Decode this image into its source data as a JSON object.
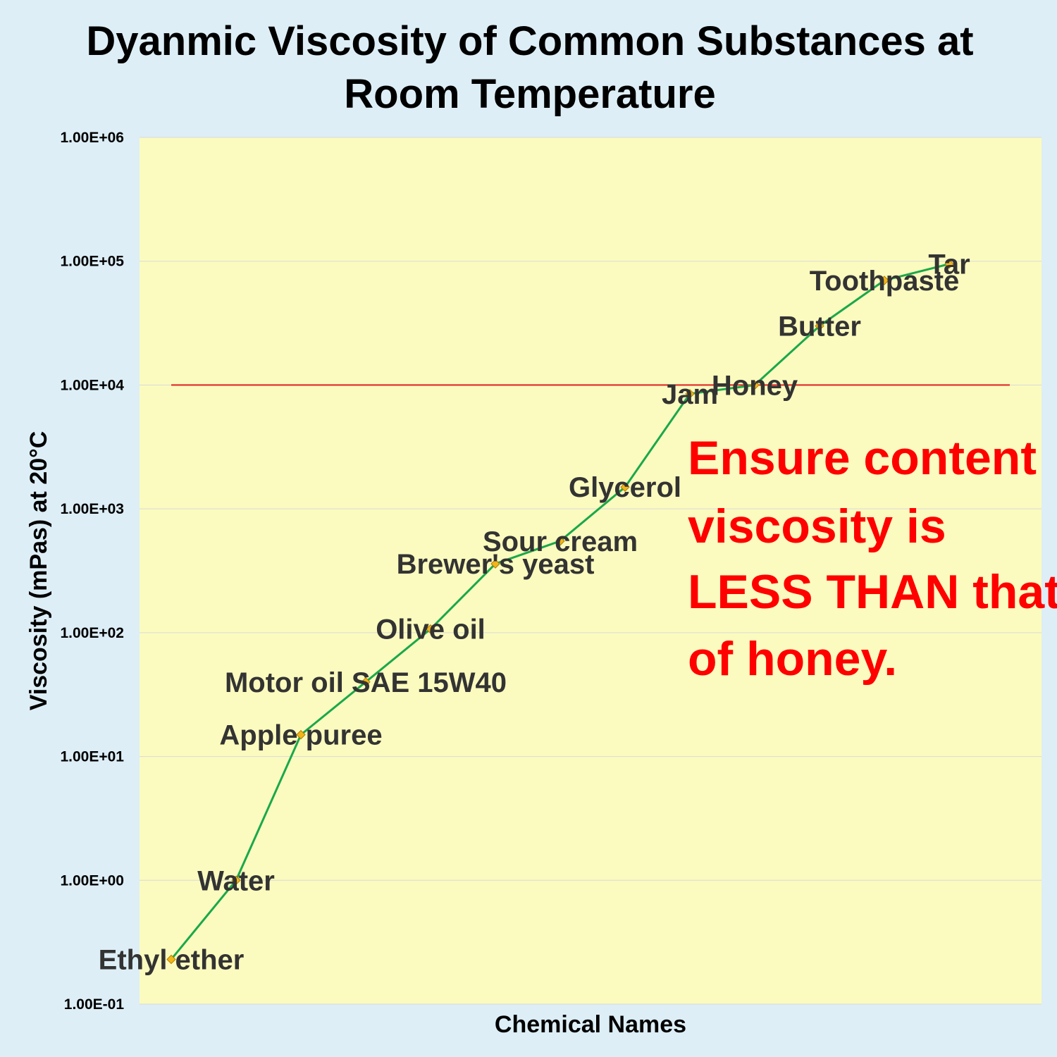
{
  "chart_data": {
    "type": "line",
    "title_lines": [
      "Dyanmic Viscosity of Common Substances at",
      "Room Temperature"
    ],
    "xlabel": "Chemical Names",
    "ylabel": "Viscosity (mPas) at 20°C",
    "yscale": "log",
    "ylim": [
      0.1,
      1000000
    ],
    "ytick_labels": [
      "1.00E-01",
      "1.00E+00",
      "1.00E+01",
      "1.00E+02",
      "1.00E+03",
      "1.00E+04",
      "1.00E+05",
      "1.00E+06"
    ],
    "grid": true,
    "series": [
      {
        "color": "#1aa84a",
        "marker_color": "#f2b51b",
        "points": [
          {
            "label": "Ethyl ether",
            "value": 0.23
          },
          {
            "label": "Water",
            "value": 1.0
          },
          {
            "label": "Apple puree",
            "value": 15
          },
          {
            "label": "Motor oil SAE 15W40",
            "value": 40
          },
          {
            "label": "Olive oil",
            "value": 107
          },
          {
            "label": "Brewer's yeast",
            "value": 360
          },
          {
            "label": "Sour cream",
            "value": 550
          },
          {
            "label": "Glycerol",
            "value": 1500
          },
          {
            "label": "Jam",
            "value": 8500
          },
          {
            "label": "Honey",
            "value": 10000
          },
          {
            "label": "Butter",
            "value": 30000
          },
          {
            "label": "Toothpaste",
            "value": 70000
          },
          {
            "label": "Tar",
            "value": 95000
          }
        ]
      }
    ],
    "reference_line": {
      "value": 10000,
      "color": "#e02020"
    },
    "annotation": {
      "lines": [
        "Ensure content",
        "viscosity is",
        "LESS THAN that",
        "of honey."
      ],
      "color": "#ff0000"
    },
    "colors": {
      "plot_background": "#fbfbbf",
      "page_background": "#ddeef6",
      "gridline": "#d9d9d9"
    }
  }
}
